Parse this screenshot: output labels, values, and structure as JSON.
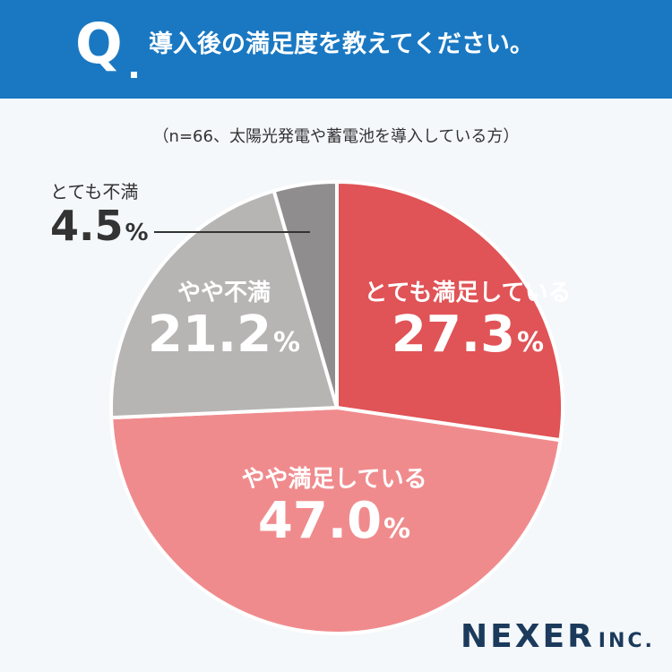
{
  "header": {
    "q_mark": "Q",
    "question": "導入後の満足度を教えてください。"
  },
  "note": "（n=66、太陽光発電や蓄電池を導入している方）",
  "chart_data": {
    "type": "pie",
    "title": "導入後の満足度を教えてください。",
    "subtitle": "（n=66、太陽光発電や蓄電池を導入している方）",
    "slices": [
      {
        "label": "とても満足している",
        "value": 27.3,
        "display": "27.3",
        "color": "#e05356"
      },
      {
        "label": "やや満足している",
        "value": 47.0,
        "display": "47.0",
        "color": "#f08b8d"
      },
      {
        "label": "やや不満",
        "value": 21.2,
        "display": "21.2",
        "color": "#b7b4b4"
      },
      {
        "label": "とても不満",
        "value": 4.5,
        "display": "4.5",
        "color": "#8f8d8d"
      }
    ],
    "unit": "%",
    "start": "12 o'clock",
    "direction": "clockwise"
  },
  "logo": {
    "main": "NEXER",
    "sub": "INC."
  }
}
